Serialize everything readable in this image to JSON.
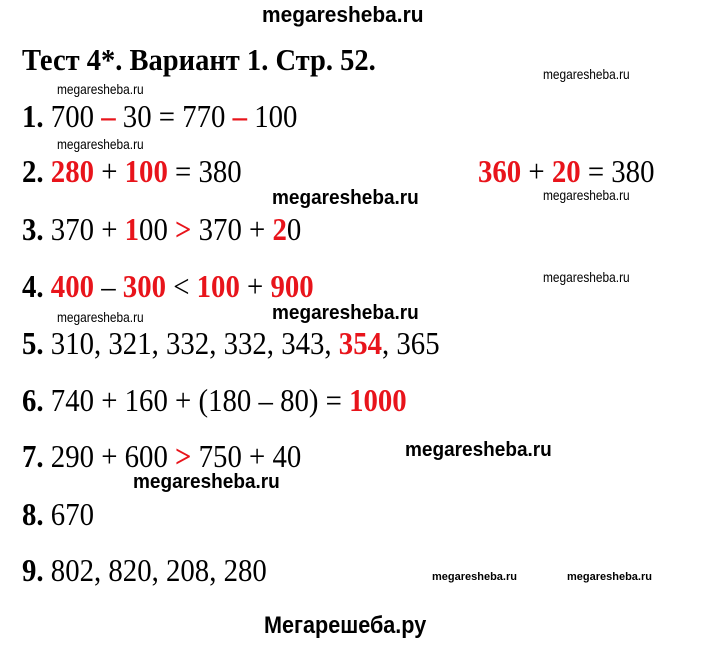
{
  "header_watermark": "megaresheba.ru",
  "title": "Тест 4*. Вариант 1. Стр. 52.",
  "answers": [
    {
      "num": "1.",
      "segments": [
        {
          "t": " 700 "
        },
        {
          "t": "–",
          "red": true
        },
        {
          "t": " 30 = 770 "
        },
        {
          "t": "–",
          "red": true
        },
        {
          "t": " 100"
        }
      ]
    },
    {
      "num": "2.",
      "segments": [
        {
          "t": " "
        },
        {
          "t": "280",
          "red": true
        },
        {
          "t": " + "
        },
        {
          "t": "100",
          "red": true
        },
        {
          "t": " = 380"
        }
      ],
      "extra": [
        {
          "t": "360",
          "red": true
        },
        {
          "t": " + "
        },
        {
          "t": "20",
          "red": true
        },
        {
          "t": " = 380"
        }
      ]
    },
    {
      "num": "3.",
      "segments": [
        {
          "t": " 370 + "
        },
        {
          "t": "1",
          "red": true
        },
        {
          "t": "00 "
        },
        {
          "t": ">",
          "red": true
        },
        {
          "t": " 370 + "
        },
        {
          "t": "2",
          "red": true
        },
        {
          "t": "0"
        }
      ]
    },
    {
      "num": "4.",
      "segments": [
        {
          "t": " "
        },
        {
          "t": "400",
          "red": true
        },
        {
          "t": " – "
        },
        {
          "t": "300",
          "red": true
        },
        {
          "t": " < "
        },
        {
          "t": "100",
          "red": true
        },
        {
          "t": " + "
        },
        {
          "t": "900",
          "red": true
        }
      ]
    },
    {
      "num": "5.",
      "segments": [
        {
          "t": " 310, 321, 332, 332, 343, "
        },
        {
          "t": "354",
          "red": true
        },
        {
          "t": ", 365"
        }
      ]
    },
    {
      "num": "6.",
      "segments": [
        {
          "t": " 740 + 160 + (180 – 80) = "
        },
        {
          "t": "1000",
          "red": true
        }
      ]
    },
    {
      "num": "7.",
      "segments": [
        {
          "t": " 290 + 600 "
        },
        {
          "t": ">",
          "red": true
        },
        {
          "t": " 750 + 40"
        }
      ]
    },
    {
      "num": "8.",
      "segments": [
        {
          "t": " 670"
        }
      ]
    },
    {
      "num": "9.",
      "segments": [
        {
          "t": " 802, 820, 208, 280"
        }
      ]
    }
  ],
  "watermarks": {
    "small": [
      "megaresheba.ru",
      "megaresheba.ru",
      "megaresheba.ru",
      "megaresheba.ru",
      "megaresheba.ru",
      "megaresheba.ru"
    ],
    "bold": [
      "megaresheba.ru",
      "megaresheba.ru",
      "megaresheba.ru",
      "megaresheba.ru"
    ],
    "tiny": [
      "megaresheba.ru",
      "megaresheba.ru"
    ]
  },
  "footer": "Мегарешеба.ру",
  "colors": {
    "accent": "#e8141b",
    "text": "#000000"
  }
}
